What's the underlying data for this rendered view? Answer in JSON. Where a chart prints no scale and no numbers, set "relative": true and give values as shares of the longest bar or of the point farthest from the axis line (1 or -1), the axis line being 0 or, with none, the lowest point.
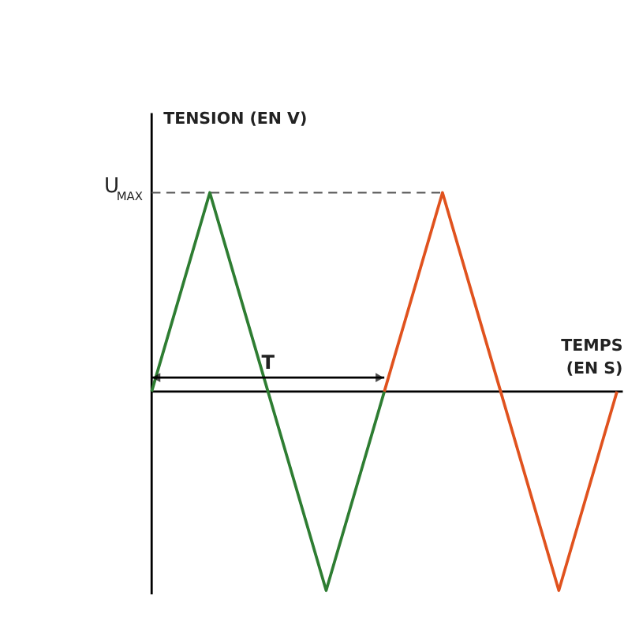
{
  "chart_data": {
    "type": "line",
    "relative": true,
    "ylabel": "TENSION (EN V)",
    "xlabel": "TEMPS\n(EN S)",
    "categories": [
      null,
      null,
      null,
      null,
      null,
      null,
      null,
      null,
      null
    ],
    "series": [
      {
        "color": "#2e7d32",
        "values": [
          0,
          1,
          0,
          -1,
          0,
          null,
          null,
          null,
          null
        ]
      },
      {
        "color": "#e0521e",
        "values": [
          null,
          null,
          null,
          null,
          0,
          1,
          0,
          -1,
          0
        ]
      }
    ],
    "ref_lines": [
      {
        "axis": "y",
        "value": 1,
        "label": "U$_{MAX}$",
        "line_style": "dashed",
        "color": "#555555"
      }
    ],
    "annotations": [
      "T"
    ],
    "marker": "none",
    "line_style": "solid"
  }
}
